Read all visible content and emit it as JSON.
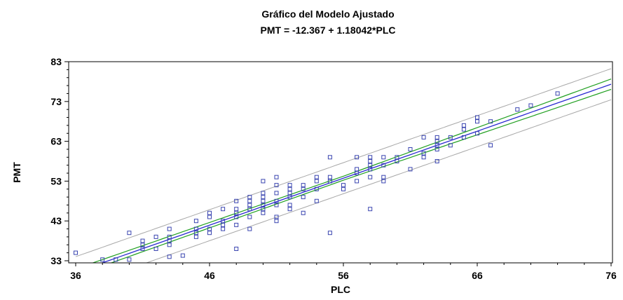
{
  "chart_data": {
    "type": "scatter",
    "title": "Gráfico del Modelo Ajustado",
    "subtitle": "PMT = -12.367 + 1.18042*PLC",
    "xlabel": "PLC",
    "ylabel": "PMT",
    "xlim": [
      36,
      76
    ],
    "ylim": [
      33,
      83
    ],
    "x_ticks": [
      36,
      46,
      56,
      66,
      76
    ],
    "y_ticks": [
      33,
      43,
      53,
      63,
      73,
      83
    ],
    "x_tick_labels": [
      "36",
      "46",
      "56",
      "66",
      "76"
    ],
    "y_tick_labels": [
      "33",
      "43",
      "53",
      "63",
      "73",
      "83"
    ],
    "grid": false,
    "regression": {
      "intercept": -12.367,
      "slope": 1.18042
    },
    "confidence_band_halfwidth": {
      "at_xmin": 0.85,
      "at_xmid": 0.5,
      "at_xmax": 1.3
    },
    "prediction_band_halfwidth": 3.9,
    "colors": {
      "points": "#3a45b0",
      "fit_line": "#2a2ad0",
      "confidence_limits": "#22a022",
      "prediction_limits": "#a8a8a8",
      "frame": "#000000"
    },
    "points": [
      [
        36,
        35
      ],
      [
        38,
        33.3
      ],
      [
        39,
        33.3
      ],
      [
        40,
        33.3
      ],
      [
        40,
        40
      ],
      [
        41,
        37
      ],
      [
        41,
        38
      ],
      [
        41,
        36
      ],
      [
        42,
        39
      ],
      [
        42,
        36
      ],
      [
        43,
        41
      ],
      [
        43,
        39
      ],
      [
        43,
        38
      ],
      [
        43,
        37
      ],
      [
        43,
        34
      ],
      [
        44,
        34.3
      ],
      [
        45,
        39
      ],
      [
        45,
        40
      ],
      [
        45,
        41
      ],
      [
        45,
        43
      ],
      [
        46,
        40
      ],
      [
        46,
        41
      ],
      [
        46,
        44
      ],
      [
        46,
        45
      ],
      [
        47,
        42
      ],
      [
        47,
        41
      ],
      [
        47,
        43
      ],
      [
        47,
        46
      ],
      [
        48,
        44
      ],
      [
        48,
        46
      ],
      [
        48,
        42
      ],
      [
        48,
        36
      ],
      [
        48,
        45
      ],
      [
        48,
        48
      ],
      [
        49,
        41
      ],
      [
        49,
        44
      ],
      [
        49,
        46
      ],
      [
        49,
        47
      ],
      [
        49,
        48
      ],
      [
        49,
        49
      ],
      [
        50,
        45
      ],
      [
        50,
        47
      ],
      [
        50,
        48
      ],
      [
        50,
        49
      ],
      [
        50,
        50
      ],
      [
        50,
        46
      ],
      [
        50,
        53
      ],
      [
        51,
        47
      ],
      [
        51,
        48
      ],
      [
        51,
        50
      ],
      [
        51,
        52
      ],
      [
        51,
        43
      ],
      [
        51,
        44
      ],
      [
        51,
        54
      ],
      [
        52,
        47
      ],
      [
        52,
        49
      ],
      [
        52,
        50
      ],
      [
        52,
        51
      ],
      [
        52,
        52
      ],
      [
        52,
        46
      ],
      [
        53,
        49
      ],
      [
        53,
        51
      ],
      [
        53,
        52
      ],
      [
        53,
        45
      ],
      [
        54,
        48
      ],
      [
        54,
        51
      ],
      [
        54,
        53
      ],
      [
        54,
        54
      ],
      [
        55,
        54
      ],
      [
        55,
        53
      ],
      [
        55,
        59
      ],
      [
        55,
        40
      ],
      [
        56,
        51
      ],
      [
        56,
        52
      ],
      [
        57,
        53
      ],
      [
        57,
        56
      ],
      [
        57,
        59
      ],
      [
        57,
        55
      ],
      [
        58,
        57
      ],
      [
        58,
        58
      ],
      [
        58,
        56
      ],
      [
        58,
        54
      ],
      [
        58,
        59
      ],
      [
        58,
        46
      ],
      [
        59,
        57
      ],
      [
        59,
        59
      ],
      [
        59,
        53
      ],
      [
        59,
        54
      ],
      [
        60,
        58
      ],
      [
        60,
        59
      ],
      [
        61,
        56
      ],
      [
        61,
        61
      ],
      [
        62,
        64
      ],
      [
        62,
        59
      ],
      [
        62,
        60
      ],
      [
        63,
        61
      ],
      [
        63,
        62
      ],
      [
        63,
        63
      ],
      [
        63,
        64
      ],
      [
        63,
        58
      ],
      [
        64,
        62
      ],
      [
        64,
        64
      ],
      [
        65,
        64
      ],
      [
        65,
        66
      ],
      [
        65,
        67
      ],
      [
        66,
        65
      ],
      [
        66,
        68
      ],
      [
        66,
        69
      ],
      [
        67,
        62
      ],
      [
        67,
        68
      ],
      [
        69,
        71
      ],
      [
        70,
        72
      ],
      [
        72,
        75
      ]
    ]
  }
}
